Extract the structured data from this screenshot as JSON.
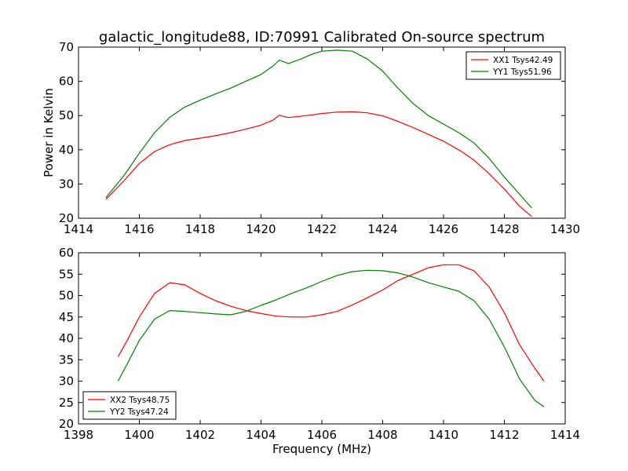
{
  "title": "galactic_longitude88, ID:70991 Calibrated On-source spectrum",
  "chart_data": [
    {
      "type": "line",
      "ylabel": "Power in Kelvin",
      "xlabel": "",
      "xlim": [
        1414,
        1430
      ],
      "ylim": [
        20,
        70
      ],
      "xticks": [
        1414,
        1416,
        1418,
        1420,
        1422,
        1424,
        1426,
        1428,
        1430
      ],
      "yticks": [
        20,
        30,
        40,
        50,
        60,
        70
      ],
      "legend_position": "top-right",
      "series": [
        {
          "name": "XX1 Tsys42.49",
          "color": "#ff0000",
          "x": [
            1414.9,
            1415.5,
            1416,
            1416.5,
            1417,
            1417.5,
            1418,
            1418.5,
            1419,
            1419.5,
            1420,
            1420.4,
            1420.6,
            1420.9,
            1421.5,
            1422,
            1422.5,
            1423,
            1423.5,
            1424,
            1424.5,
            1425,
            1425.5,
            1426,
            1426.5,
            1427,
            1427.5,
            1428,
            1428.5,
            1428.9
          ],
          "y": [
            25.5,
            31,
            36,
            39.5,
            41.5,
            42.7,
            43.4,
            44.1,
            45,
            46,
            47.2,
            48.7,
            50.1,
            49.4,
            50,
            50.6,
            51,
            51.1,
            50.8,
            49.9,
            48.3,
            46.5,
            44.5,
            42.5,
            40,
            37,
            33,
            28.5,
            23.5,
            20.5
          ]
        },
        {
          "name": "YY1 Tsys51.96",
          "color": "#008000",
          "x": [
            1414.9,
            1415.5,
            1416,
            1416.5,
            1417,
            1417.5,
            1418,
            1418.5,
            1419,
            1419.5,
            1420,
            1420.4,
            1420.6,
            1420.9,
            1421.3,
            1421.7,
            1422,
            1422.5,
            1423,
            1423.5,
            1424,
            1424.5,
            1425,
            1425.5,
            1426,
            1426.5,
            1427,
            1427.5,
            1428,
            1428.5,
            1428.9
          ],
          "y": [
            26,
            32.5,
            39,
            45,
            49.5,
            52.5,
            54.5,
            56.3,
            58,
            60,
            62,
            64.5,
            66.2,
            65.2,
            66.5,
            68,
            68.8,
            69.1,
            68.8,
            66.5,
            63,
            58,
            53.5,
            50,
            47.5,
            45,
            42,
            37.5,
            32,
            27,
            23
          ]
        }
      ]
    },
    {
      "type": "line",
      "xlabel": "Frequency (MHz)",
      "ylabel": "",
      "xlim": [
        1398,
        1414
      ],
      "ylim": [
        20,
        60
      ],
      "xticks": [
        1398,
        1400,
        1402,
        1404,
        1406,
        1408,
        1410,
        1412,
        1414
      ],
      "yticks": [
        20,
        25,
        30,
        35,
        40,
        45,
        50,
        55,
        60
      ],
      "legend_position": "bottom-left",
      "series": [
        {
          "name": "XX2 Tsys48.75",
          "color": "#ff0000",
          "x": [
            1399.3,
            1399.6,
            1400,
            1400.5,
            1401,
            1401.5,
            1402,
            1402.5,
            1403,
            1403.5,
            1404,
            1404.5,
            1405,
            1405.5,
            1406,
            1406.5,
            1407,
            1407.5,
            1408,
            1408.5,
            1409,
            1409.5,
            1410,
            1410.5,
            1411,
            1411.5,
            1412,
            1412.5,
            1413,
            1413.3
          ],
          "y": [
            35.7,
            39.5,
            45,
            50.5,
            53,
            52.5,
            50.5,
            48.8,
            47.5,
            46.5,
            45.8,
            45.2,
            45,
            45,
            45.5,
            46.3,
            47.8,
            49.5,
            51.3,
            53.5,
            55,
            56.5,
            57.2,
            57.2,
            55.8,
            52,
            46,
            38.5,
            33,
            30
          ]
        },
        {
          "name": "YY2 Tsys47.24",
          "color": "#008000",
          "x": [
            1399.3,
            1399.6,
            1400,
            1400.5,
            1401,
            1401.5,
            1402,
            1402.5,
            1403,
            1403.5,
            1404,
            1404.5,
            1405,
            1405.5,
            1406,
            1406.5,
            1407,
            1407.5,
            1408,
            1408.5,
            1409,
            1409.5,
            1410,
            1410.5,
            1411,
            1411.5,
            1412,
            1412.5,
            1413,
            1413.3
          ],
          "y": [
            30,
            34,
            39.5,
            44.5,
            46.5,
            46.3,
            46,
            45.7,
            45.5,
            46.3,
            47.7,
            49,
            50.5,
            51.8,
            53.3,
            54.7,
            55.6,
            55.9,
            55.8,
            55.3,
            54.3,
            53,
            52,
            51,
            48.8,
            44.5,
            38,
            30.5,
            25.5,
            24
          ]
        }
      ]
    }
  ]
}
